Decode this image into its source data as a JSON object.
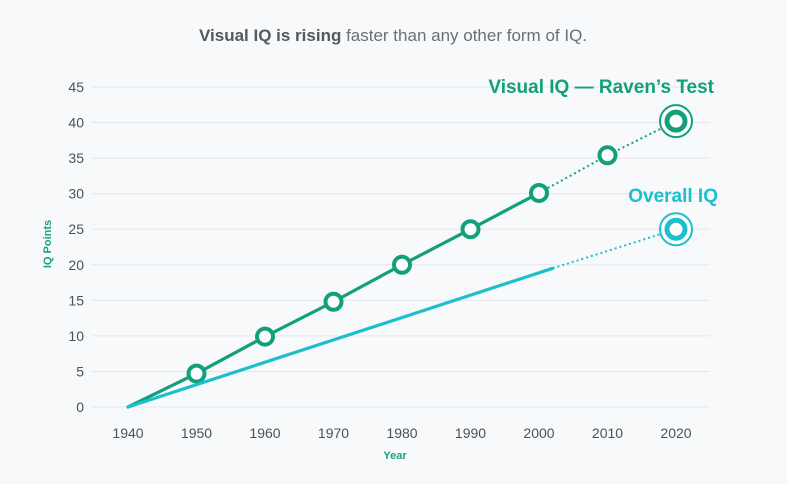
{
  "chart_data": {
    "type": "line",
    "title_bold": "Visual IQ is rising",
    "title_rest": " faster than any other form of IQ.",
    "xlabel": "Year",
    "ylabel": "IQ Points",
    "x_ticks": [
      1940,
      1950,
      1960,
      1970,
      1980,
      1990,
      2000,
      2010,
      2020
    ],
    "y_ticks": [
      0,
      5,
      10,
      15,
      20,
      25,
      30,
      35,
      40,
      45
    ],
    "xlim": [
      1940,
      2020
    ],
    "ylim": [
      0,
      45
    ],
    "grid": true,
    "series": [
      {
        "name": "Visual IQ — Raven’s Test",
        "color": "#12a07c",
        "solid": [
          [
            1940,
            0
          ],
          [
            1950,
            4.7
          ],
          [
            1960,
            9.9
          ],
          [
            1970,
            14.8
          ],
          [
            1980,
            20
          ],
          [
            1990,
            25
          ],
          [
            2000,
            30.1
          ]
        ],
        "dotted": [
          [
            2000,
            30.1
          ],
          [
            2010,
            35.4
          ],
          [
            2020,
            40.2
          ]
        ],
        "markers": [
          [
            1950,
            4.7
          ],
          [
            1960,
            9.9
          ],
          [
            1970,
            14.8
          ],
          [
            1980,
            20
          ],
          [
            1990,
            25
          ],
          [
            2000,
            30.1
          ],
          [
            2010,
            35.4
          ]
        ],
        "end_marker": [
          2020,
          40.2
        ]
      },
      {
        "name": "Overall IQ",
        "color": "#1cc0cc",
        "solid": [
          [
            1940,
            0
          ],
          [
            2002,
            19.5
          ]
        ],
        "dotted": [
          [
            2002,
            19.5
          ],
          [
            2020,
            25
          ]
        ],
        "markers": [],
        "end_marker": [
          2020,
          25
        ]
      }
    ]
  }
}
